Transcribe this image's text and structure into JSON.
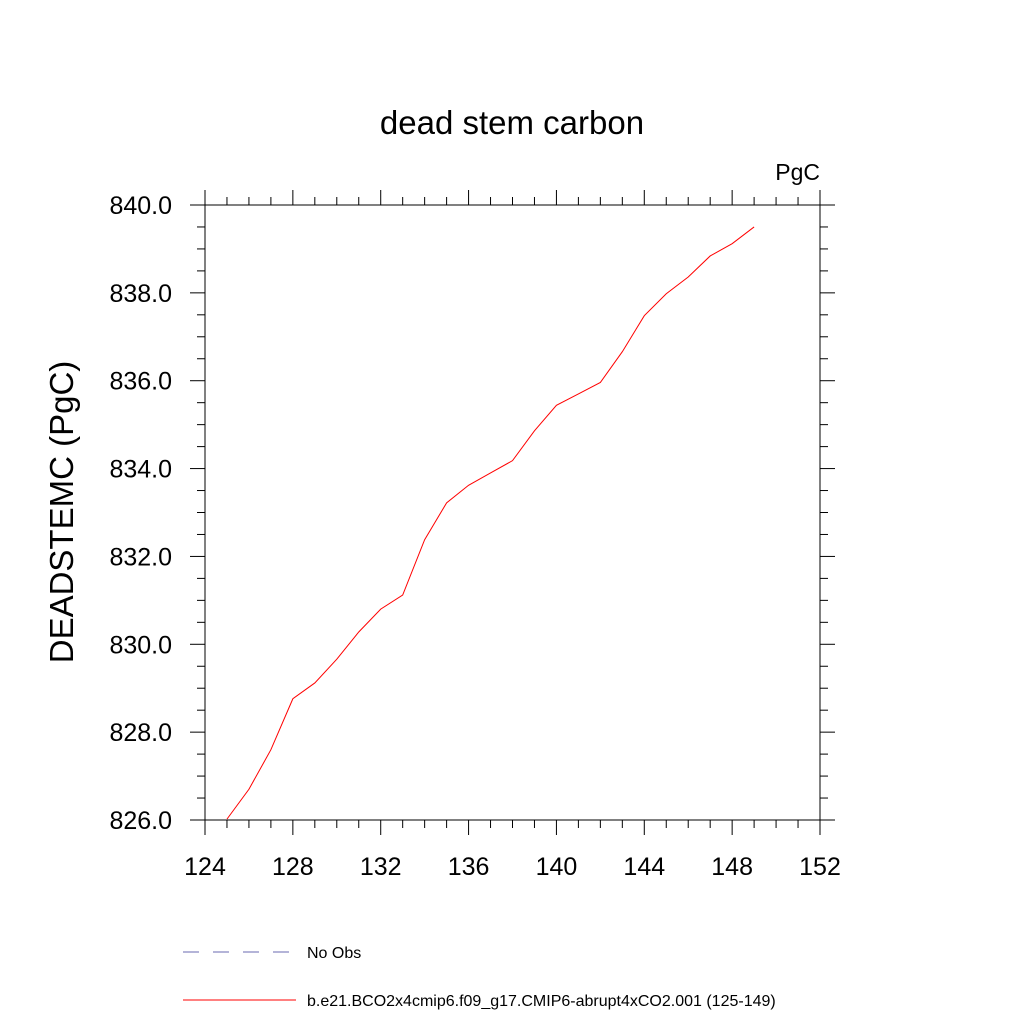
{
  "chart_data": {
    "type": "line",
    "title": "dead stem carbon",
    "units": "PgC",
    "ylabel": "DEADSTEMC  (PgC)",
    "xlabel": "",
    "xlim": [
      124,
      152
    ],
    "ylim": [
      826,
      840
    ],
    "xticks": [
      124,
      128,
      132,
      136,
      140,
      144,
      148,
      152
    ],
    "xtick_labels": [
      "124",
      "128",
      "132",
      "136",
      "140",
      "144",
      "148",
      "152"
    ],
    "yticks": [
      826,
      828,
      830,
      832,
      834,
      836,
      838,
      840
    ],
    "ytick_labels": [
      "826.0",
      "828.0",
      "830.0",
      "832.0",
      "834.0",
      "836.0",
      "838.0",
      "840.0"
    ],
    "grid": false,
    "legend_position": "bottom",
    "series": [
      {
        "name": "No Obs",
        "color": "#6a6ab0",
        "dash": "dashed",
        "x": [],
        "y": []
      },
      {
        "name": "b.e21.BCO2x4cmip6.f09_g17.CMIP6-abrupt4xCO2.001 (125-149)",
        "color": "#ff0000",
        "dash": "solid",
        "x": [
          125,
          126,
          127,
          128,
          129,
          130,
          131,
          132,
          133,
          134,
          135,
          136,
          137,
          138,
          139,
          140,
          141,
          142,
          143,
          144,
          145,
          146,
          147,
          148,
          149
        ],
        "y": [
          826.02,
          826.7,
          827.6,
          828.76,
          829.12,
          829.66,
          830.28,
          830.8,
          831.12,
          832.38,
          833.22,
          833.62,
          833.9,
          834.18,
          834.86,
          835.44,
          835.7,
          835.96,
          836.66,
          837.48,
          837.98,
          838.36,
          838.84,
          839.12,
          839.5
        ]
      }
    ]
  }
}
